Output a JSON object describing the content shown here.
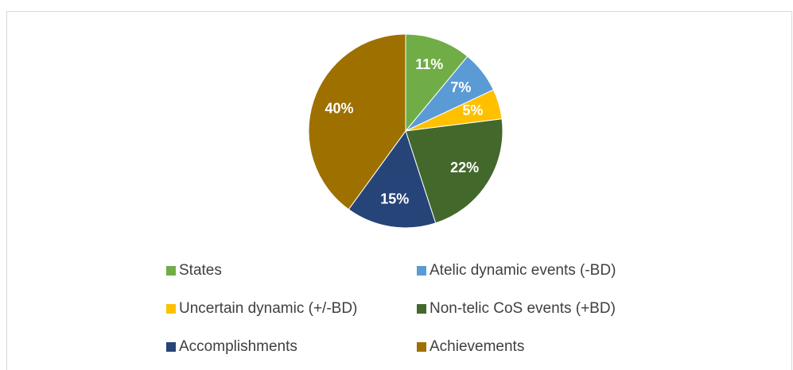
{
  "chart_data": {
    "type": "pie",
    "categories": [
      "States",
      "Atelic dynamic events (-BD)",
      "Uncertain dynamic (+/-BD)",
      "Non-telic CoS events (+BD)",
      "Accomplishments",
      "Achievements"
    ],
    "values": [
      11,
      7,
      5,
      22,
      15,
      40
    ],
    "value_labels": [
      "11%",
      "7%",
      "5%",
      "22%",
      "15%",
      "40%"
    ],
    "colors": [
      "#70ad47",
      "#5b9bd5",
      "#ffc000",
      "#43682b",
      "#264478",
      "#9e7000"
    ],
    "legend": "bottom"
  }
}
